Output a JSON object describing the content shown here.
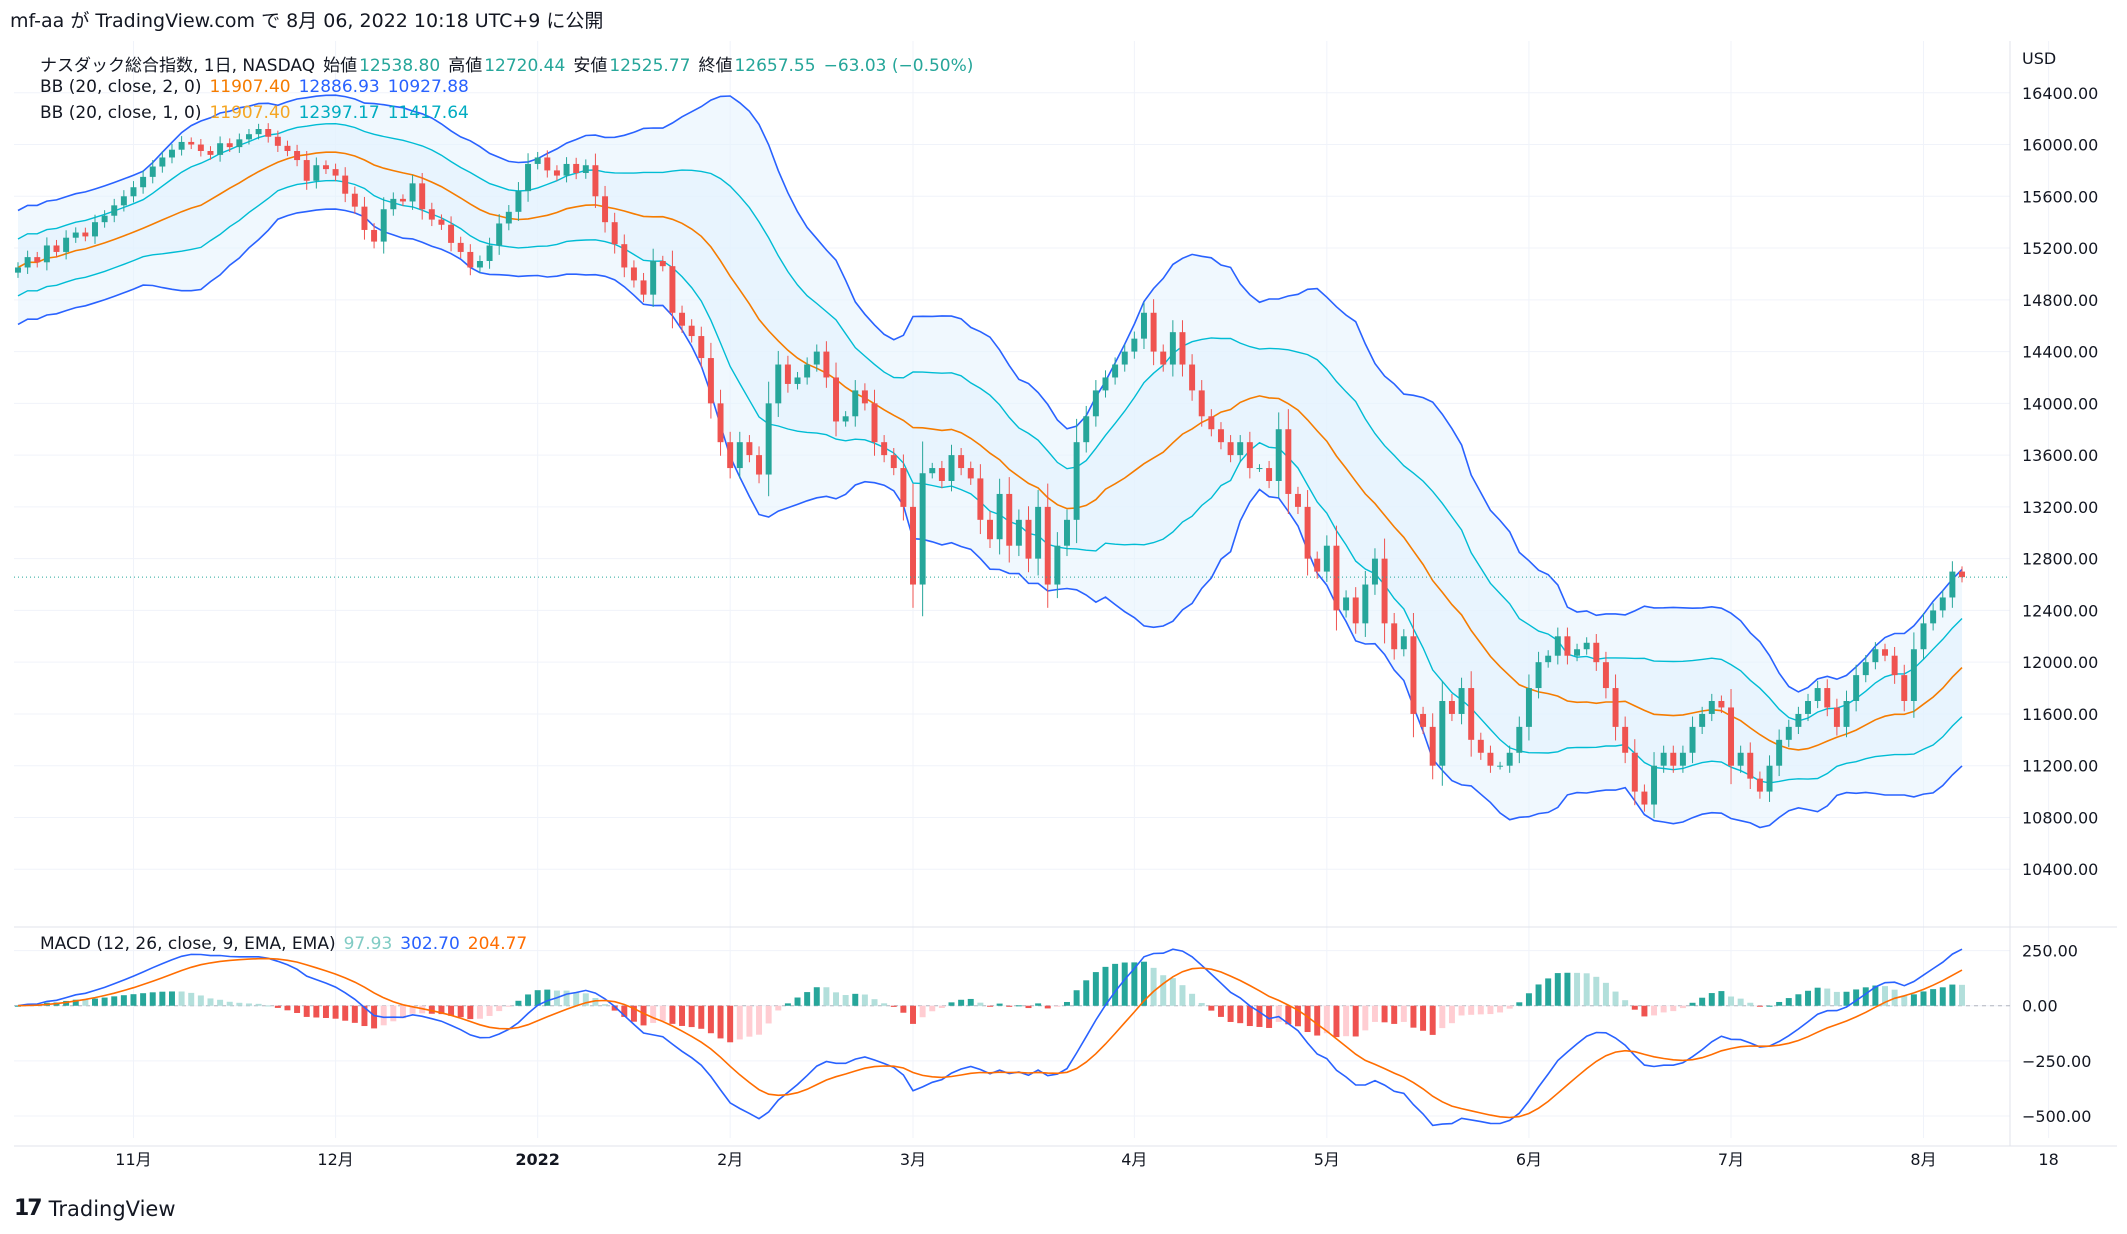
{
  "header": {
    "publish_line": "mf-aa が TradingView.com で 8月 06, 2022 10:18 UTC+9 に公開"
  },
  "legend": {
    "symbol_line": {
      "name": "ナスダック総合指数, 1日, NASDAQ",
      "open_label": "始値",
      "open": "12538.80",
      "high_label": "高値",
      "high": "12720.44",
      "low_label": "安値",
      "low": "12525.77",
      "close_label": "終値",
      "close": "12657.55",
      "change": "−63.03 (−0.50%)"
    },
    "bb2": {
      "label": "BB (20, close, 2, 0)",
      "basis": "11907.40",
      "upper": "12886.93",
      "lower": "10927.88"
    },
    "bb1": {
      "label": "BB (20, close, 1, 0)",
      "basis": "11907.40",
      "upper": "12397.17",
      "lower": "11417.64"
    },
    "macd": {
      "label": "MACD (12, 26, close, 9, EMA, EMA)",
      "hist": "97.93",
      "macd": "302.70",
      "signal": "204.77"
    }
  },
  "footer": {
    "brand": "TradingView"
  },
  "colors": {
    "up": "#26a69a",
    "down": "#ef5350",
    "up_light": "#b2dfdb",
    "down_light": "#ffcdd2",
    "basis": "#f57c00",
    "bb2": "#2962ff",
    "bb1": "#00bcd4",
    "bb_fill": "#e3f2fd",
    "macd_line": "#2962ff",
    "signal_line": "#ff6d00",
    "grid": "#f0f3fa",
    "last_price": "#26a69a"
  },
  "chart_data": [
    {
      "type": "candlestick",
      "currency": "USD",
      "y_ticks": [
        10400,
        10800,
        11200,
        11600,
        12000,
        12400,
        12800,
        13200,
        13600,
        14000,
        14400,
        14800,
        15200,
        15600,
        16000,
        16400
      ],
      "y_tick_labels": [
        "10400.00",
        "10800.00",
        "11200.00",
        "11600.00",
        "12000.00",
        "12400.00",
        "12800.00",
        "13200.00",
        "13600.00",
        "14000.00",
        "14400.00",
        "14800.00",
        "15200.00",
        "15600.00",
        "16000.00",
        "16400.00"
      ],
      "ylim": [
        10000,
        16800
      ],
      "x_tick_labels": [
        {
          "label": "11月",
          "index": 12
        },
        {
          "label": "12月",
          "index": 33
        },
        {
          "label": "2022",
          "index": 54
        },
        {
          "label": "2月",
          "index": 74
        },
        {
          "label": "3月",
          "index": 93
        },
        {
          "label": "4月",
          "index": 116
        },
        {
          "label": "5月",
          "index": 136
        },
        {
          "label": "6月",
          "index": 157
        },
        {
          "label": "7月",
          "index": 178
        },
        {
          "label": "8月",
          "index": 198
        },
        {
          "label": "18",
          "index": 211
        }
      ],
      "last_close": 12657.55,
      "close": [
        15050,
        15130,
        15090,
        15220,
        15170,
        15280,
        15320,
        15290,
        15400,
        15450,
        15530,
        15600,
        15670,
        15750,
        15830,
        15900,
        15960,
        16020,
        16000,
        15950,
        15920,
        16010,
        15980,
        16040,
        16080,
        16120,
        16060,
        15990,
        15950,
        15880,
        15720,
        15840,
        15810,
        15760,
        15620,
        15520,
        15340,
        15250,
        15500,
        15580,
        15560,
        15700,
        15500,
        15420,
        15380,
        15240,
        15170,
        15050,
        15100,
        15220,
        15390,
        15480,
        15640,
        15850,
        15900,
        15800,
        15760,
        15850,
        15780,
        15840,
        15600,
        15400,
        15230,
        15050,
        14950,
        14840,
        15100,
        15060,
        14700,
        14600,
        14520,
        14350,
        14000,
        13700,
        13500,
        13700,
        13600,
        13450,
        14000,
        14300,
        14150,
        14200,
        14300,
        14400,
        14200,
        13860,
        13900,
        14100,
        14000,
        13700,
        13600,
        13500,
        13200,
        12600,
        13460,
        13500,
        13400,
        13600,
        13500,
        13420,
        13100,
        12950,
        13300,
        12900,
        13100,
        12800,
        13200,
        12600,
        12900,
        13100,
        13700,
        13900,
        14100,
        14200,
        14300,
        14400,
        14500,
        14700,
        14400,
        14300,
        14550,
        14300,
        14100,
        13900,
        13800,
        13700,
        13600,
        13700,
        13500,
        13500,
        13400,
        13800,
        13300,
        13200,
        12800,
        12700,
        12900,
        12400,
        12500,
        12300,
        12600,
        12800,
        12300,
        12100,
        12200,
        11600,
        11500,
        11200,
        11700,
        11600,
        11800,
        11400,
        11300,
        11200,
        11200,
        11300,
        11500,
        11800,
        12000,
        12050,
        12200,
        12050,
        12100,
        12150,
        12000,
        11800,
        11500,
        11300,
        11000,
        10900,
        11200,
        11300,
        11200,
        11300,
        11500,
        11600,
        11700,
        11650,
        11200,
        11300,
        11100,
        11000,
        11200,
        11400,
        11500,
        11600,
        11700,
        11800,
        11650,
        11500,
        11700,
        11900,
        12000,
        12100,
        12050,
        11900,
        11700,
        12100,
        12300,
        12400,
        12500,
        12700,
        12657
      ]
    },
    {
      "type": "macd",
      "y_ticks": [
        -500,
        -250,
        0,
        250
      ],
      "y_tick_labels": [
        "−500.00",
        "−250.00",
        "0.00",
        "250.00"
      ],
      "ylim": [
        -600,
        330
      ]
    }
  ]
}
